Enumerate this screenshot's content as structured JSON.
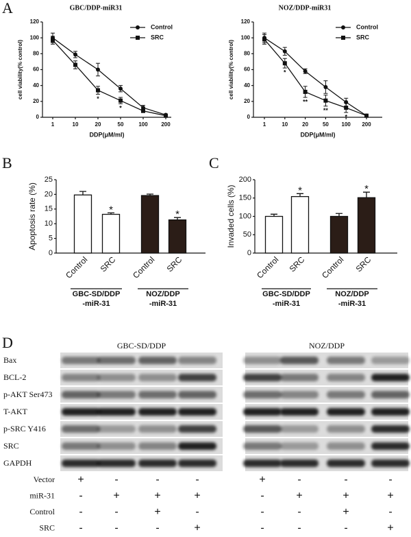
{
  "chart_data": [
    {
      "type": "line",
      "panel_label": "A",
      "title": "GBC/DDP-miR31",
      "categories": [
        "1",
        "10",
        "20",
        "50",
        "100",
        "200"
      ],
      "x_label": "DDP(μM/ml)",
      "y_label": "cell viability(% control)",
      "ylim": [
        0,
        120
      ],
      "yticks": [
        0,
        20,
        40,
        60,
        80,
        100,
        120
      ],
      "series": [
        {
          "name": "Control",
          "color": "#111111",
          "marker": "circle",
          "values": [
            100,
            79,
            60,
            36,
            12,
            3
          ],
          "errors": [
            6,
            4,
            8,
            4,
            3,
            1
          ],
          "annotations": [
            null,
            null,
            null,
            null,
            null,
            null
          ]
        },
        {
          "name": "SRC",
          "color": "#111111",
          "marker": "square",
          "values": [
            97,
            66,
            34,
            21,
            8,
            2
          ],
          "errors": [
            5,
            5,
            5,
            4,
            2,
            1
          ],
          "annotations": [
            null,
            null,
            "*",
            "*",
            null,
            null
          ]
        }
      ]
    },
    {
      "type": "line",
      "title": "NOZ/DDP-miR31",
      "categories": [
        "1",
        "10",
        "20",
        "50",
        "100",
        "200"
      ],
      "x_label": "DDP(μM/ml)",
      "y_label": "cell viability(% control)",
      "ylim": [
        0,
        120
      ],
      "yticks": [
        0,
        20,
        40,
        60,
        80,
        100,
        120
      ],
      "series": [
        {
          "name": "Control",
          "color": "#111111",
          "marker": "circle",
          "values": [
            100,
            83,
            58,
            38,
            19,
            2
          ],
          "errors": [
            6,
            5,
            3,
            8,
            5,
            1
          ],
          "annotations": [
            null,
            null,
            null,
            null,
            null,
            null
          ]
        },
        {
          "name": "SRC",
          "color": "#111111",
          "marker": "square",
          "values": [
            98,
            68,
            32,
            21,
            12,
            2
          ],
          "errors": [
            6,
            6,
            7,
            7,
            6,
            1
          ],
          "annotations": [
            null,
            "*",
            "**",
            "**",
            "*",
            null
          ]
        }
      ]
    },
    {
      "type": "bar",
      "panel_label": "B",
      "y_label": "Apoptosis rate (%)",
      "categories": [
        "Control",
        "SRC",
        "Control",
        "SRC"
      ],
      "groups": [
        [
          "GBC-SD/DDP",
          "-miR-31"
        ],
        [
          "NOZ/DDP",
          "-miR-31"
        ]
      ],
      "values": [
        19.8,
        13.2,
        19.6,
        11.3
      ],
      "errors": [
        1.2,
        0.5,
        0.5,
        0.8
      ],
      "colors": [
        "#ffffff",
        "#ffffff",
        "#2b1d17",
        "#2b1d17"
      ],
      "annotations": [
        null,
        "*",
        null,
        "*"
      ],
      "ylim": [
        0,
        25
      ],
      "yticks": [
        0,
        5,
        10,
        15,
        20,
        25
      ]
    },
    {
      "type": "bar",
      "panel_label": "C",
      "y_label": "Invaded cells (%)",
      "categories": [
        "Control",
        "SRC",
        "Control",
        "SRC"
      ],
      "groups": [
        [
          "GBC-SD/DDP",
          "-miR-31"
        ],
        [
          "NOZ/DDP",
          "-miR-31"
        ]
      ],
      "values": [
        100,
        154,
        100,
        151
      ],
      "errors": [
        6,
        8,
        8,
        15
      ],
      "colors": [
        "#ffffff",
        "#ffffff",
        "#2b1d17",
        "#2b1d17"
      ],
      "annotations": [
        null,
        "*",
        null,
        "*"
      ],
      "ylim": [
        0,
        200
      ],
      "yticks": [
        0,
        50,
        100,
        150,
        200
      ]
    }
  ],
  "blot": {
    "panel_label": "D",
    "headers": [
      "GBC-SD/DDP",
      "NOZ/DDP"
    ],
    "rows": [
      "Bax",
      "BCL-2",
      "p-AKT Ser473",
      "T-AKT",
      "p-SRC Y416",
      "SRC",
      "GAPDH"
    ],
    "conditions": [
      {
        "label": "Vector",
        "left": [
          "+",
          "-",
          "-",
          "-"
        ],
        "right": [
          "+",
          "-",
          "-",
          "-"
        ]
      },
      {
        "label": "miR-31",
        "left": [
          "-",
          "+",
          "+",
          "+"
        ],
        "right": [
          "-",
          "+",
          "+",
          "+"
        ]
      },
      {
        "label": "Control",
        "left": [
          "-",
          "-",
          "+",
          "-"
        ],
        "right": [
          "-",
          "-",
          "+",
          "-"
        ]
      },
      {
        "label": "SRC",
        "left": [
          "-",
          "-",
          "-",
          "+"
        ],
        "right": [
          "-",
          "-",
          "-",
          "+"
        ]
      }
    ]
  }
}
